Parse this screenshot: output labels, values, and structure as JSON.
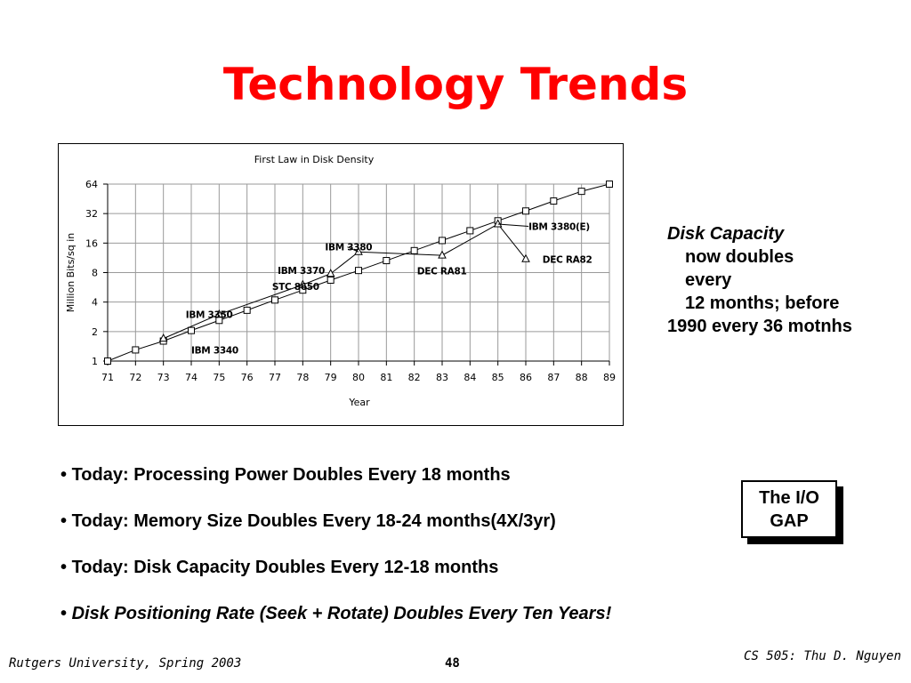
{
  "slide": {
    "title": "Technology Trends",
    "side_note": {
      "label": "Disk Capacity",
      "line1": "now doubles",
      "line2": "every",
      "line3": "12 months; before",
      "line4": "1990 every 36 motnhs"
    },
    "bullets": [
      {
        "mark": "•",
        "text": "Today: Processing Power Doubles Every 18 months"
      },
      {
        "mark": "•",
        "text": "Today: Memory Size Doubles Every 18-24 months(4X/3yr)"
      },
      {
        "mark": "•",
        "text": "Today: Disk Capacity Doubles Every 12-18 months"
      },
      {
        "mark": "•",
        "text": "Disk Positioning Rate (Seek + Rotate) Doubles Every Ten Years!"
      }
    ],
    "io_gap": {
      "line1": "The I/O",
      "line2": "GAP"
    },
    "footer": {
      "left": "Rutgers University, Spring 2003",
      "page": "48",
      "right": "CS 505: Thu D. Nguyen"
    }
  },
  "chart_data": {
    "type": "line",
    "title": "First Law in Disk Density",
    "xlabel": "Year",
    "ylabel": "Million Bits/sq in",
    "yscale": "log2",
    "categories": [
      "71",
      "72",
      "73",
      "74",
      "75",
      "76",
      "77",
      "78",
      "79",
      "80",
      "81",
      "82",
      "83",
      "84",
      "85",
      "86",
      "87",
      "88",
      "89"
    ],
    "y_ticks": [
      1,
      2,
      4,
      8,
      16,
      32,
      64
    ],
    "ylim": [
      1,
      64
    ],
    "grid": true,
    "series": [
      {
        "marker": "square",
        "x": [
          71,
          72,
          73,
          74,
          75,
          76,
          77,
          78,
          79,
          80,
          81,
          82,
          83,
          84,
          85,
          86,
          87,
          88,
          89
        ],
        "y": [
          1,
          1.3,
          1.6,
          2.05,
          2.6,
          3.3,
          4.2,
          5.3,
          6.7,
          8.4,
          10.6,
          13.4,
          17,
          21.4,
          27,
          34,
          43,
          54,
          64
        ]
      },
      {
        "marker": "triangle",
        "x": [
          73,
          75,
          78,
          79,
          80,
          83,
          85,
          86
        ],
        "y": [
          1.7,
          3.0,
          6.0,
          7.8,
          13.0,
          12.0,
          25.0,
          11.0
        ]
      }
    ],
    "annotations": [
      {
        "text": "IBM 3350",
        "x": 73.8,
        "y": 3.0
      },
      {
        "text": "IBM 3340",
        "x": 74.0,
        "y": 1.3
      },
      {
        "text": "STC 8650",
        "x": 76.9,
        "y": 5.8
      },
      {
        "text": "IBM 3370",
        "x": 77.1,
        "y": 8.4
      },
      {
        "text": "IBM 3380",
        "x": 78.8,
        "y": 14.6
      },
      {
        "text": "DEC RA81",
        "x": 82.1,
        "y": 8.3
      },
      {
        "text": "IBM 3380(E)",
        "x": 86.1,
        "y": 23.7
      },
      {
        "text": "DEC RA82",
        "x": 86.6,
        "y": 11.0
      }
    ]
  }
}
